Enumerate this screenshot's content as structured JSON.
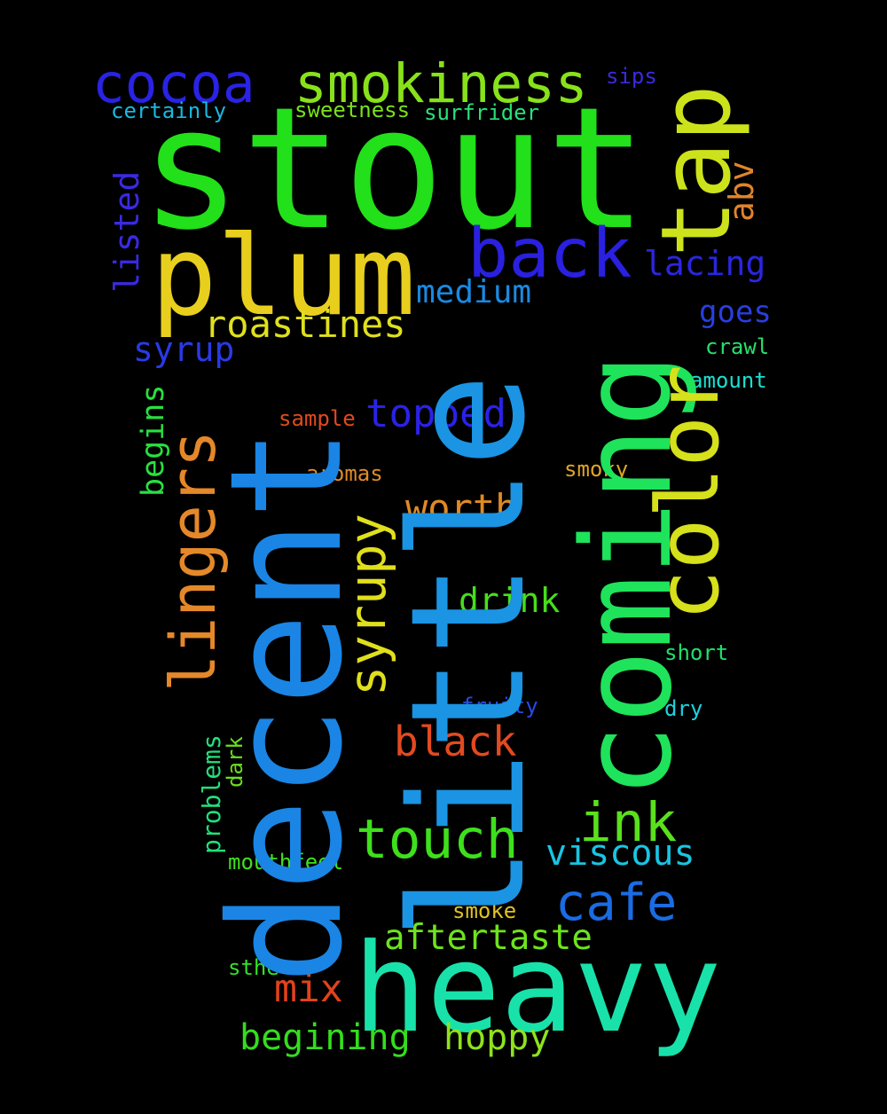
{
  "words": {
    "stout": {
      "text": "stout",
      "color": "#22e01a"
    },
    "decent": {
      "text": "decent",
      "color": "#1a85e4"
    },
    "little": {
      "text": "little",
      "color": "#1a94e3"
    },
    "coming": {
      "text": "coming",
      "color": "#1ee35b"
    },
    "heavy": {
      "text": "heavy",
      "color": "#18e2aa"
    },
    "plum": {
      "text": "plum",
      "color": "#e8cf1e"
    },
    "tap": {
      "text": "tap",
      "color": "#cce31b"
    },
    "color": {
      "text": "color",
      "color": "#d6e01b"
    },
    "back": {
      "text": "back",
      "color": "#2a20e0"
    },
    "smokiness": {
      "text": "smokiness",
      "color": "#88e21a"
    },
    "cocoa": {
      "text": "cocoa",
      "color": "#2a22e4"
    },
    "lingers": {
      "text": "lingers",
      "color": "#e4882a"
    },
    "syrupy": {
      "text": "syrupy",
      "color": "#e0df1c"
    },
    "touch": {
      "text": "touch",
      "color": "#3ee01c"
    },
    "ink": {
      "text": "ink",
      "color": "#5ae01c"
    },
    "roastines": {
      "text": "roastines",
      "color": "#dfe01e"
    },
    "cafe": {
      "text": "cafe",
      "color": "#1a6ce3"
    },
    "aftertaste": {
      "text": "aftertaste",
      "color": "#6de41c"
    },
    "begining": {
      "text": "begining",
      "color": "#34dd1e"
    },
    "hoppy": {
      "text": "hoppy",
      "color": "#8fe21c"
    },
    "topped": {
      "text": "topped",
      "color": "#2a22e6"
    },
    "black": {
      "text": "black",
      "color": "#e24a20"
    },
    "worth": {
      "text": "worth",
      "color": "#e08a22"
    },
    "viscous": {
      "text": "viscous",
      "color": "#1ac4e3"
    },
    "drink": {
      "text": "drink",
      "color": "#46e01c"
    },
    "medium": {
      "text": "medium",
      "color": "#1a8ae2"
    },
    "lacing": {
      "text": "lacing",
      "color": "#2a26e0"
    },
    "syrup": {
      "text": "syrup",
      "color": "#2a3ae4"
    },
    "mix": {
      "text": "mix",
      "color": "#e2421c"
    },
    "abv": {
      "text": "abv",
      "color": "#e0842c"
    },
    "listed": {
      "text": "listed",
      "color": "#3a2ae2"
    },
    "goes": {
      "text": "goes",
      "color": "#2a3ee0"
    },
    "begins": {
      "text": "begins",
      "color": "#28e040"
    },
    "problems": {
      "text": "problems",
      "color": "#22e07a"
    },
    "crawl": {
      "text": "crawl",
      "color": "#26e06a"
    },
    "amount": {
      "text": "amount",
      "color": "#1ae0d0"
    },
    "sample": {
      "text": "sample",
      "color": "#e04a1c"
    },
    "aromas": {
      "text": "aromas",
      "color": "#e08a24"
    },
    "smoky": {
      "text": "smoky",
      "color": "#e0a424"
    },
    "short": {
      "text": "short",
      "color": "#20e068"
    },
    "fruity": {
      "text": "fruity",
      "color": "#2a4ae2"
    },
    "dry": {
      "text": "dry",
      "color": "#1ad4e0"
    },
    "dark": {
      "text": "dark",
      "color": "#6ae01c"
    },
    "mouthfeel": {
      "text": "mouthfeel",
      "color": "#40e01c"
    },
    "smoke": {
      "text": "smoke",
      "color": "#e0c224"
    },
    "sthe": {
      "text": "sthe",
      "color": "#34e02a"
    },
    "certainly": {
      "text": "certainly",
      "color": "#1ab8e0"
    },
    "sweetness": {
      "text": "sweetness",
      "color": "#7ae01c"
    },
    "surfrider": {
      "text": "surfrider",
      "color": "#2ae07a"
    },
    "sips": {
      "text": "sips",
      "color": "#3a2ae0"
    }
  }
}
